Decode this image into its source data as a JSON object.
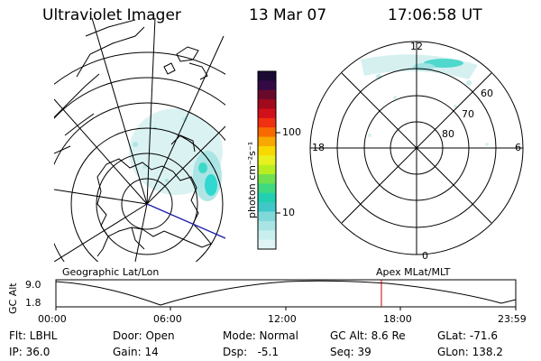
{
  "header": {
    "title": "Ultraviolet Imager",
    "date": "13 Mar 07",
    "time": "17:06:58 UT"
  },
  "colorbar": {
    "unit_label": "photon cm⁻²s⁻¹",
    "ticks": [
      "100",
      "10"
    ],
    "colors": [
      "#1a0a33",
      "#330a44",
      "#6a0a2a",
      "#a00a1a",
      "#d0101a",
      "#f03010",
      "#f86a00",
      "#f8a800",
      "#f8d800",
      "#e8f020",
      "#b8ee20",
      "#70e050",
      "#40d880",
      "#20d0b0",
      "#40c8c8",
      "#80d8d8",
      "#a8e4e4",
      "#c8eeee",
      "#e0f4f4"
    ]
  },
  "polar": {
    "mlt_top": "12",
    "mlt_left": "18",
    "mlt_right": "6",
    "mlt_bottom": "0",
    "lat_labels": [
      "60",
      "70",
      "80"
    ]
  },
  "maps": {
    "left_caption": "Geographic Lat/Lon",
    "right_caption": "Apex MLat/MLT"
  },
  "altplot": {
    "ylabel": "GC Alt",
    "y_ticks": [
      "9.0",
      "1.8"
    ],
    "x_ticks": [
      "00:00",
      "06:00",
      "12:00",
      "18:00",
      "23:59"
    ],
    "marker_time": "17:06:58",
    "marker_color": "#cc0000"
  },
  "info": {
    "flt": "Flt: LBHL",
    "ip": "IP: 36.0",
    "door": "Door: Open",
    "gain": "Gain: 14",
    "mode": "Mode: Normal",
    "dsp": "Dsp:   -5.1",
    "gcalt": "GC Alt: 8.6 Re",
    "seq": "Seq: 39",
    "glat": "GLat: -71.6",
    "glon": "GLon: 138.2"
  }
}
